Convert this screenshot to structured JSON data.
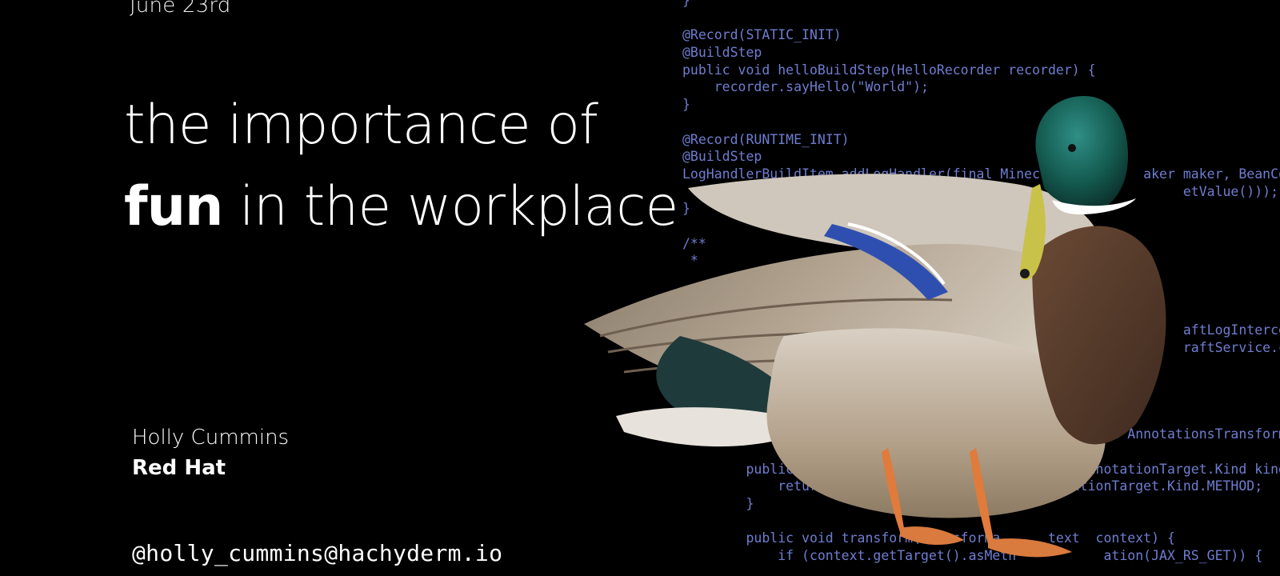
{
  "slide": {
    "date": "June 23rd",
    "title_line1": "the importance of",
    "title_line2_bold": "fun",
    "title_line2_rest": " in the workplace",
    "speaker_name": "Holly Cummins",
    "speaker_company": "Red Hat",
    "handle": "@holly_cummins@hachyderm.io"
  },
  "code_lines": [
    "}",
    "",
    "@Record(STATIC_INIT)",
    "@BuildStep",
    "public void helloBuildStep(HelloRecorder recorder) {",
    "    recorder.sayHello(\"World\");",
    "}",
    "",
    "@Record(RUNTIME_INIT)",
    "@BuildStep",
    "LogHandlerBuildItem addLogHandler(final Minecraf          aker maker, BeanCon",
    "                                                  e(b          etValue()));",
    "}",
    "",
    "/**",
    " *",
    "",
    "",
    "",
    "                                                               aftLogIntercep",
    "                                                               raftService.cla",
    "}",
    "",
    "",
    "Ann",
    "    retur                                           new AnnotationsTransformer() {",
    "",
    "        public boolean applie To(org.jboss.  ndex.AnnotationTarget.Kind kind) {",
    "            return kind == or  jboss.jandex  nnotationTarget.Kind.METHOD;",
    "        }",
    "",
    "        public void transform(Transforma      text  context) {",
    "            if (context.getTarget().asMeth           ation(JAX_RS_GET)) {"
  ],
  "colors": {
    "background": "#000000",
    "text": "#ffffff",
    "code": "#6f7dd0"
  },
  "image": {
    "subject": "mallard-duck-icon"
  }
}
